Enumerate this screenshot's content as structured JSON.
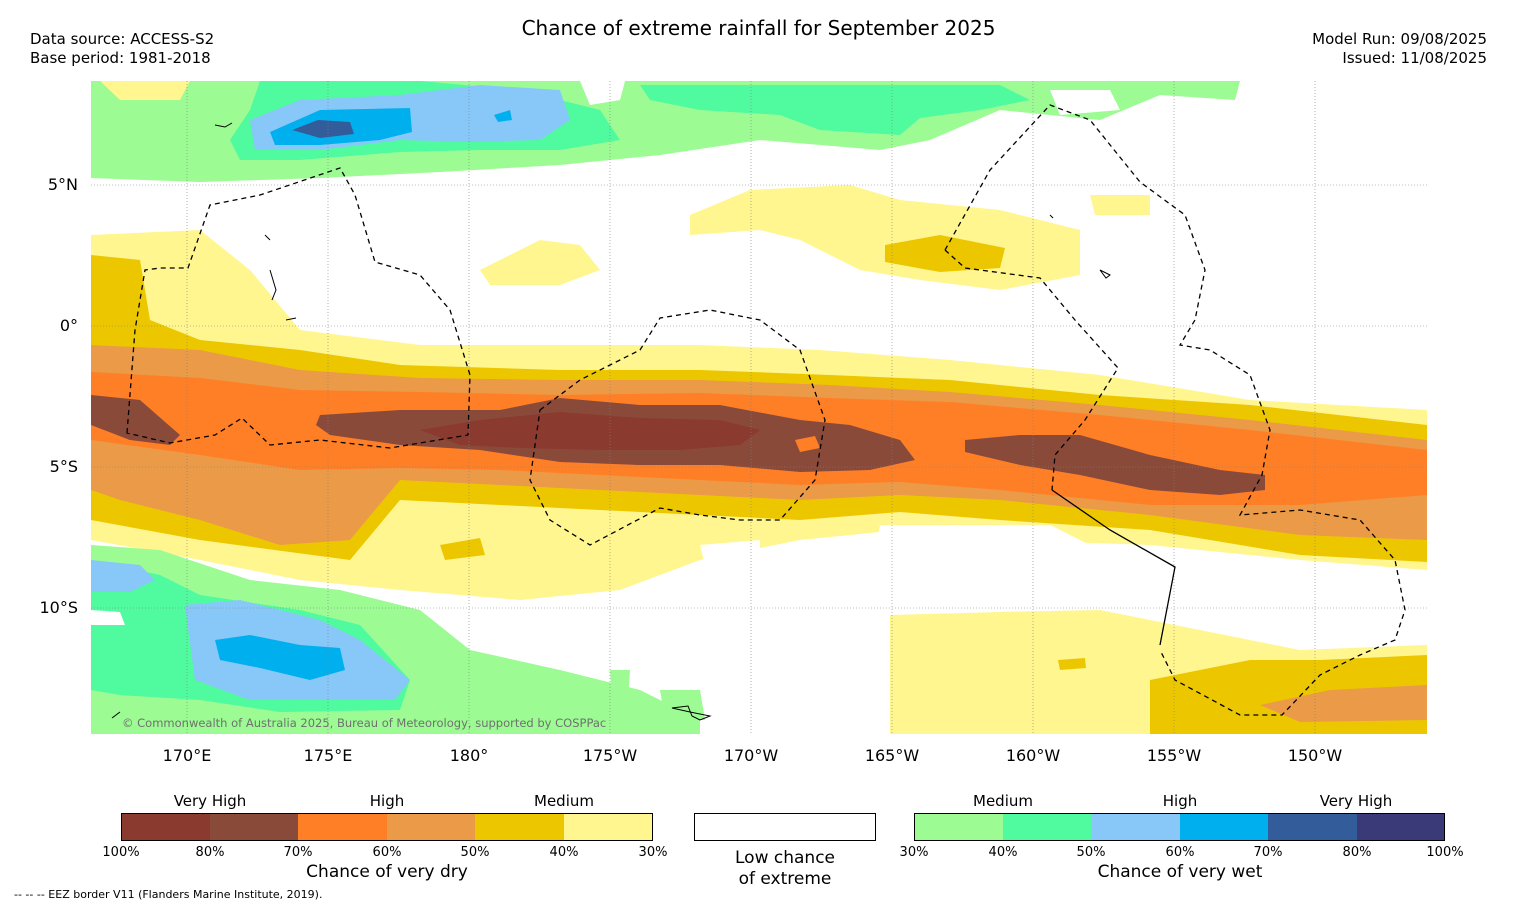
{
  "header": {
    "title": "Chance of extreme rainfall for September 2025",
    "data_source": "Data source: ACCESS-S2",
    "base_period": "Base period: 1981-2018",
    "model_run": "Model Run: 09/08/2025",
    "issued": "Issued: 11/08/2025"
  },
  "map": {
    "lat_labels": [
      "5°N",
      "0°",
      "5°S",
      "10°S"
    ],
    "lon_labels": [
      "170°E",
      "175°E",
      "180°",
      "175°W",
      "170°W",
      "165°W",
      "160°W",
      "155°W",
      "150°W"
    ],
    "copyright": "© Commonwealth of Australia 2025, Bureau of Meteorology, supported by COSPPac",
    "colors": {
      "dry_100_80": "#8b3a2f",
      "dry_80_70": "#8a4a3a",
      "dry_70_60": "#ff7f27",
      "dry_60_50": "#eb9a48",
      "dry_50_40": "#ecc700",
      "dry_40_30": "#fff68f",
      "wet_30_40": "#9cfc93",
      "wet_40_50": "#50fa9e",
      "wet_50_60": "#88c8f8",
      "wet_60_70": "#00b0ee",
      "wet_70_80": "#325c9a",
      "wet_80_100": "#3b3a78"
    }
  },
  "legend": {
    "dry": {
      "groups": [
        "Very High",
        "High",
        "Medium"
      ],
      "ticks": [
        "100%",
        "80%",
        "70%",
        "60%",
        "50%",
        "40%",
        "30%"
      ],
      "title": "Chance of very dry"
    },
    "neutral": {
      "line1": "Low chance",
      "line2": "of extreme"
    },
    "wet": {
      "groups": [
        "Medium",
        "High",
        "Very High"
      ],
      "ticks": [
        "30%",
        "40%",
        "50%",
        "60%",
        "70%",
        "80%",
        "100%"
      ],
      "title": "Chance of very wet"
    }
  },
  "footer": {
    "eez_note": "-- -- -- EEZ border V11 (Flanders Marine Institute, 2019)."
  }
}
